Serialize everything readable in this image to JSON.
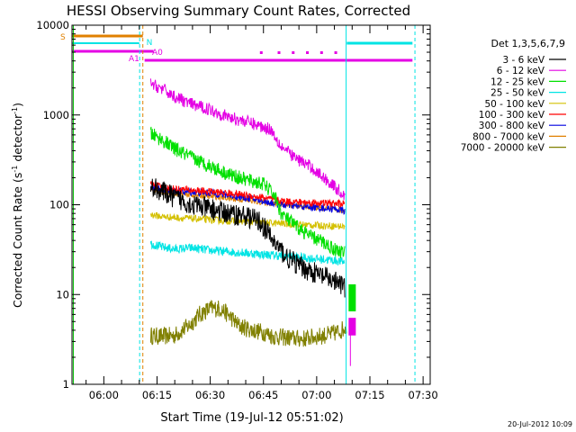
{
  "chart_data": {
    "type": "line",
    "title": "HESSI Observing Summary Count Rates, Corrected",
    "xlabel": "Start Time (19-Jul-12 05:51:02)",
    "ylabel": "Corrected Count Rate (s",
    "ylabel_sup": "-1",
    "ylabel_rest": " detector",
    "ylabel_sup2": "-1",
    "ylabel_close": ")",
    "timestamp": "20-Jul-2012 10:09",
    "x_start_min": 351.03,
    "xlim_min": [
      351.03,
      452
    ],
    "ylim": [
      1,
      10000
    ],
    "yscale": "log",
    "x_ticks": [
      {
        "min": 360,
        "label": "06:00"
      },
      {
        "min": 375,
        "label": "06:15"
      },
      {
        "min": 390,
        "label": "06:30"
      },
      {
        "min": 405,
        "label": "06:45"
      },
      {
        "min": 420,
        "label": "07:00"
      },
      {
        "min": 435,
        "label": "07:15"
      },
      {
        "min": 450,
        "label": "07:30"
      }
    ],
    "y_ticks": [
      {
        "value": 1,
        "label": "1"
      },
      {
        "value": 10,
        "label": "10"
      },
      {
        "value": 100,
        "label": "100"
      },
      {
        "value": 1000,
        "label": "1000"
      },
      {
        "value": 10000,
        "label": "10000"
      }
    ],
    "legend_title": "Det 1,3,5,6,7,9",
    "legend_position": "right",
    "series": [
      {
        "name": "3 - 6 keV",
        "color": "#000000",
        "noise": 0.12,
        "points": [
          [
            373.2,
            160
          ],
          [
            375,
            150
          ],
          [
            380,
            120
          ],
          [
            385,
            100
          ],
          [
            390,
            90
          ],
          [
            395,
            80
          ],
          [
            400,
            75
          ],
          [
            404,
            65
          ],
          [
            406,
            50
          ],
          [
            408,
            38
          ],
          [
            412,
            25
          ],
          [
            416,
            20
          ],
          [
            420,
            17
          ],
          [
            425,
            14
          ],
          [
            428,
            12
          ]
        ]
      },
      {
        "name": "6 - 12 keV",
        "color": "#e400e4",
        "noise": 0.07,
        "points": [
          [
            373.2,
            2200
          ],
          [
            376,
            2000
          ],
          [
            380,
            1600
          ],
          [
            385,
            1300
          ],
          [
            390,
            1150
          ],
          [
            395,
            950
          ],
          [
            400,
            850
          ],
          [
            405,
            730
          ],
          [
            407,
            700
          ],
          [
            410,
            450
          ],
          [
            414,
            330
          ],
          [
            418,
            270
          ],
          [
            422,
            200
          ],
          [
            425,
            160
          ],
          [
            428,
            125
          ]
        ]
      },
      {
        "name": "12 - 25 keV",
        "color": "#00e000",
        "noise": 0.08,
        "points": [
          [
            373.2,
            620
          ],
          [
            376,
            540
          ],
          [
            380,
            420
          ],
          [
            385,
            330
          ],
          [
            390,
            270
          ],
          [
            395,
            220
          ],
          [
            400,
            190
          ],
          [
            405,
            170
          ],
          [
            408,
            130
          ],
          [
            410,
            80
          ],
          [
            414,
            58
          ],
          [
            418,
            45
          ],
          [
            422,
            38
          ],
          [
            425,
            32
          ],
          [
            428,
            29
          ]
        ]
      },
      {
        "name": "25 - 50 keV",
        "color": "#00e4e4",
        "noise": 0.05,
        "points": [
          [
            373.2,
            37
          ],
          [
            376,
            34
          ],
          [
            380,
            32
          ],
          [
            385,
            33
          ],
          [
            390,
            31
          ],
          [
            395,
            30
          ],
          [
            400,
            29
          ],
          [
            405,
            28
          ],
          [
            410,
            27
          ],
          [
            415,
            26
          ],
          [
            420,
            25
          ],
          [
            425,
            24
          ],
          [
            428,
            23
          ]
        ]
      },
      {
        "name": "50 - 100 keV",
        "color": "#d4c000",
        "noise": 0.04,
        "points": [
          [
            373.2,
            78
          ],
          [
            376,
            74
          ],
          [
            380,
            72
          ],
          [
            385,
            70
          ],
          [
            390,
            68
          ],
          [
            395,
            66
          ],
          [
            400,
            65
          ],
          [
            405,
            63
          ],
          [
            410,
            62
          ],
          [
            415,
            60
          ],
          [
            420,
            59
          ],
          [
            425,
            58
          ],
          [
            428,
            57
          ]
        ]
      },
      {
        "name": "100 - 300 keV",
        "color": "#ff0000",
        "noise": 0.04,
        "points": [
          [
            373.2,
            170
          ],
          [
            376,
            158
          ],
          [
            380,
            150
          ],
          [
            385,
            145
          ],
          [
            390,
            140
          ],
          [
            395,
            135
          ],
          [
            400,
            128
          ],
          [
            405,
            120
          ],
          [
            410,
            110
          ],
          [
            415,
            107
          ],
          [
            420,
            105
          ],
          [
            425,
            103
          ],
          [
            428,
            102
          ]
        ]
      },
      {
        "name": "300 - 800 keV",
        "color": "#0000e0",
        "noise": 0.04,
        "points": [
          [
            373.2,
            160
          ],
          [
            376,
            150
          ],
          [
            380,
            142
          ],
          [
            385,
            138
          ],
          [
            390,
            135
          ],
          [
            395,
            128
          ],
          [
            400,
            120
          ],
          [
            405,
            110
          ],
          [
            410,
            100
          ],
          [
            415,
            96
          ],
          [
            420,
            93
          ],
          [
            425,
            90
          ],
          [
            428,
            85
          ]
        ]
      },
      {
        "name": "800 - 7000 keV",
        "color": "#e08000",
        "noise": 0.03,
        "points": [
          [
            373.2,
            145
          ],
          [
            376,
            140
          ],
          [
            380,
            133
          ],
          [
            385,
            128
          ],
          [
            390,
            124
          ],
          [
            395,
            118
          ],
          [
            400,
            112
          ],
          [
            405,
            106
          ],
          [
            410,
            100
          ],
          [
            415,
            96
          ],
          [
            420,
            92
          ],
          [
            425,
            88
          ],
          [
            428,
            85
          ]
        ]
      },
      {
        "name": "7000 - 20000 keV",
        "color": "#808000",
        "noise": 0.1,
        "points": [
          [
            373.2,
            3.5
          ],
          [
            376,
            3.4
          ],
          [
            380,
            3.5
          ],
          [
            384,
            4.5
          ],
          [
            387,
            6.0
          ],
          [
            390,
            7.0
          ],
          [
            393,
            7.0
          ],
          [
            396,
            5.5
          ],
          [
            398,
            4.5
          ],
          [
            402,
            4.0
          ],
          [
            405,
            3.8
          ],
          [
            408,
            3.4
          ],
          [
            412,
            3.3
          ],
          [
            416,
            3.2
          ],
          [
            420,
            3.4
          ],
          [
            424,
            3.6
          ],
          [
            427,
            4.0
          ],
          [
            428.5,
            4.5
          ]
        ]
      }
    ],
    "flag_labels": {
      "s": "S",
      "n": "N",
      "a1": "A1",
      "a0": "A0"
    }
  }
}
